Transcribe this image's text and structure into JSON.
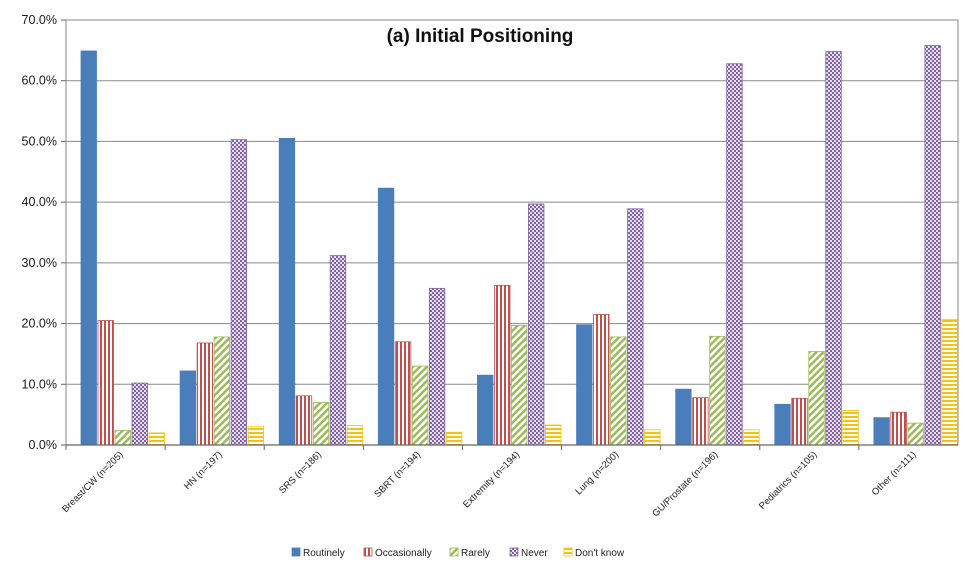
{
  "chart_data": {
    "type": "bar",
    "title": "(a)  Initial Positioning",
    "xlabel": "",
    "ylabel": "",
    "ylim": [
      0,
      70
    ],
    "yticks": [
      "0.0%",
      "10.0%",
      "20.0%",
      "30.0%",
      "40.0%",
      "50.0%",
      "60.0%",
      "70.0%"
    ],
    "grid": true,
    "legend_position": "bottom",
    "categories": [
      "Breast/CW (n=205)",
      "HN (n=197)",
      "SRS (n=186)",
      "SBRT (n=194)",
      "Extremity (n=194)",
      "Lung (n=200)",
      "GU/Prostate (n=196)",
      "Pediatrics (n=105)",
      "Other (n=111)"
    ],
    "series": [
      {
        "name": "Routinely",
        "color": "#4a7ebb",
        "pattern": "solid",
        "values": [
          64.9,
          12.2,
          50.5,
          42.3,
          11.5,
          19.8,
          9.2,
          6.7,
          4.5
        ]
      },
      {
        "name": "Occasionally",
        "color": "#c0504d",
        "pattern": "vertical-lines",
        "values": [
          20.5,
          16.8,
          8.1,
          17.0,
          26.3,
          21.5,
          7.8,
          7.7,
          5.4
        ]
      },
      {
        "name": "Rarely",
        "color": "#9bbb59",
        "pattern": "diagonal-lines",
        "values": [
          2.4,
          17.8,
          7.0,
          13.0,
          19.7,
          17.8,
          17.9,
          15.4,
          3.6
        ]
      },
      {
        "name": "Never",
        "color": "#8064a2",
        "pattern": "checker",
        "values": [
          10.2,
          50.3,
          31.2,
          25.8,
          39.7,
          38.9,
          62.8,
          64.8,
          65.8
        ]
      },
      {
        "name": "Don't know",
        "color": "#f2c314",
        "pattern": "horizontal-lines",
        "values": [
          2.0,
          3.0,
          3.2,
          2.1,
          3.3,
          2.5,
          2.5,
          5.7,
          20.7
        ]
      }
    ]
  }
}
